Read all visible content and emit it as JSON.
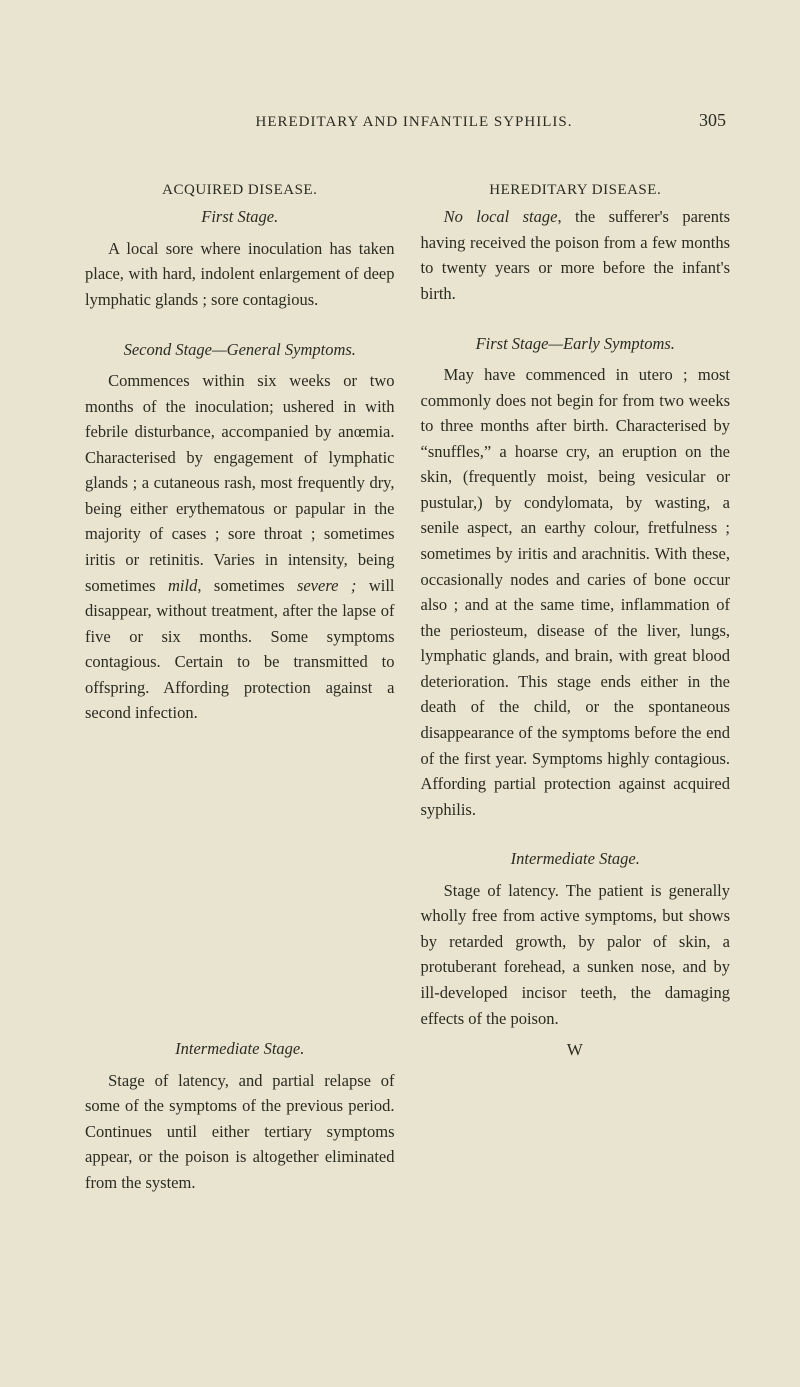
{
  "page": {
    "running_title": "HEREDITARY AND INFANTILE SYPHILIS.",
    "number": "305",
    "signature": "W"
  },
  "left": {
    "acquired_head": "ACQUIRED DISEASE.",
    "first_stage_head": "First Stage.",
    "first_stage_body": "A local sore where inoculation has taken place, with hard, indolent enlargement of deep lymphatic glands ; sore contagious.",
    "second_stage_head": "Second Stage—General Symptoms.",
    "second_stage_body_html": "Commences within six weeks or two months of the inoculation; ushered in with febrile disturbance, accompanied by anœmia. Characterised by engagement of lymphatic glands ; a cutaneous rash, most frequently dry, being either erythematous or papular in the majority of cases ; sore throat ; sometimes iritis or retinitis. Varies in intensity, being sometimes <em>mild</em>, sometimes <em>severe ;</em> will disappear, without treatment, after the lapse of five or six months. Some symptoms contagious. Certain to be transmitted to offspring. Affording protection against a second infection.",
    "intermediate_head": "Intermediate Stage.",
    "intermediate_body": "Stage of latency, and partial relapse of some of the symptoms of the previous period. Continues until either tertiary symptoms appear, or the poison is altogether eliminated from the system."
  },
  "right": {
    "hereditary_head": "HEREDITARY DISEASE.",
    "no_local_body_html": "<em>No local stage</em>, the sufferer's parents having received the poison from a few months to twenty years or more before the infant's birth.",
    "first_stage_head": "First Stage—Early Symptoms.",
    "first_stage_body": "May have commenced in utero ; most commonly does not begin for from two weeks to three months after birth. Characterised by “snuffles,” a hoarse cry, an eruption on the skin, (frequently moist, being vesicular or pustular,) by condylomata, by wasting, a senile aspect, an earthy colour, fretfulness ; sometimes by iritis and arachnitis. With these, occasionally nodes and caries of bone occur also ; and at the same time, inflammation of the periosteum, disease of the liver, lungs, lymphatic glands, and brain, with great blood deterioration. This stage ends either in the death of the child, or the spontaneous disappearance of the symptoms before the end of the first year. Symptoms highly contagious. Affording partial protection against acquired syphilis.",
    "intermediate_head": "Intermediate Stage.",
    "intermediate_body": "Stage of latency. The patient is generally wholly free from active symptoms, but shows by retarded growth, by palor of skin, a protuberant forehead, a sunken nose, and by ill-developed incisor teeth, the damaging effects of the poison."
  }
}
